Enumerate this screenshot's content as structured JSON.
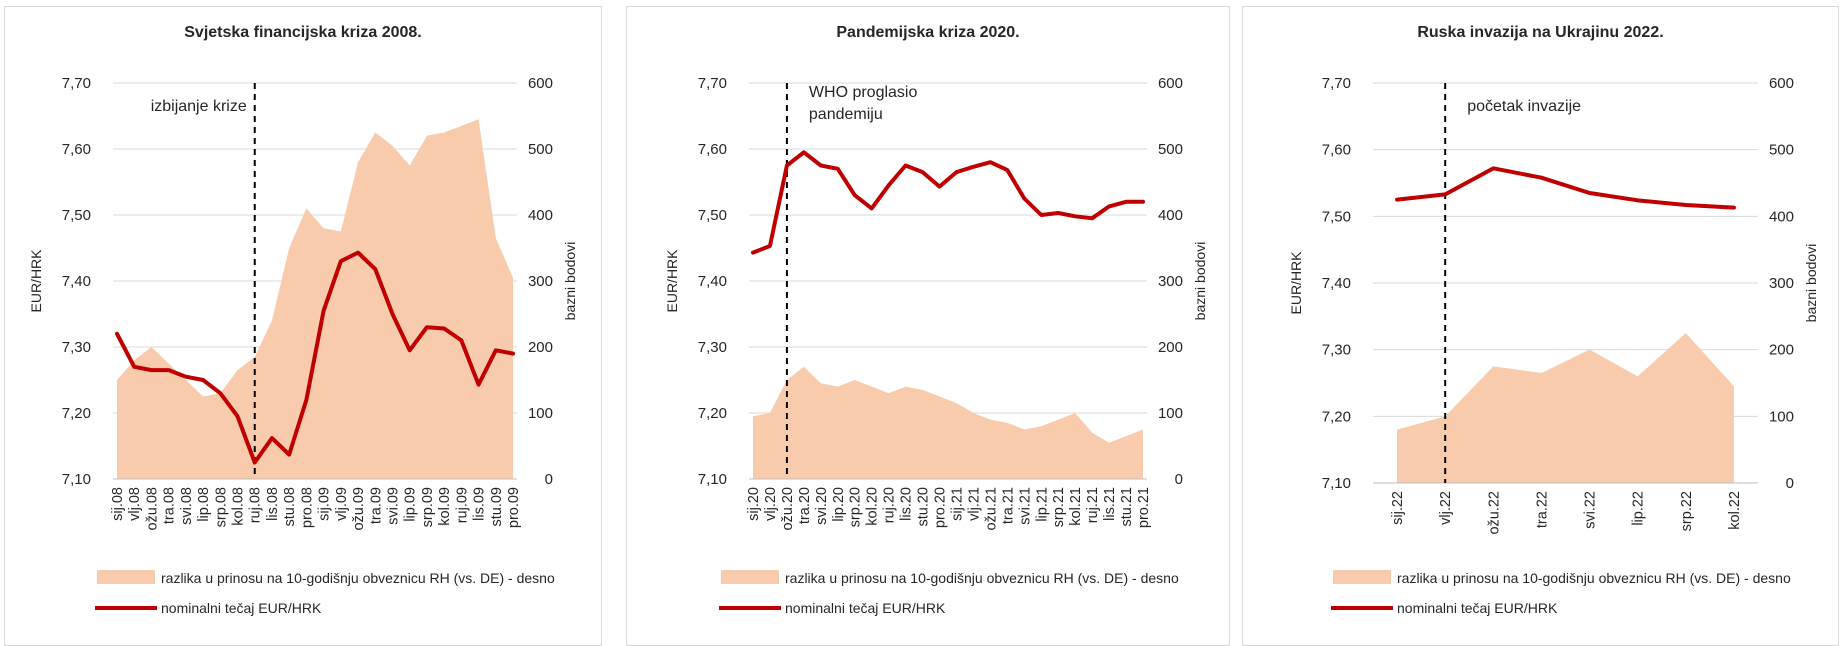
{
  "colors": {
    "area": "#F8CBAD",
    "line": "#C00000",
    "axis": "#bfbfbf",
    "grid": "#d9d9d9",
    "text": "#262626"
  },
  "legend": {
    "area_label": "razlika u prinosu na 10-godišnju obveznicu RH (vs. DE) - desno",
    "line_label": "nominalni tečaj EUR/HRK"
  },
  "chart_data": [
    {
      "type": "line",
      "title": "Svjetska financijska kriza 2008.",
      "ylabel": "EUR/HRK",
      "y2label": "bazni bodovi",
      "ylim": [
        7.1,
        7.7
      ],
      "y2lim": [
        0,
        600
      ],
      "yticks": [
        "7,10",
        "7,20",
        "7,30",
        "7,40",
        "7,50",
        "7,60",
        "7,70"
      ],
      "y2ticks": [
        "0",
        "100",
        "200",
        "300",
        "400",
        "500",
        "600"
      ],
      "grid": true,
      "categories": [
        "sij.08",
        "vlj.08",
        "ožu.08",
        "tra.08",
        "svi.08",
        "lip.08",
        "srp.08",
        "kol.08",
        "ruj.08",
        "lis.08",
        "stu.08",
        "pro.08",
        "sij.09",
        "vlj.09",
        "ožu.09",
        "tra.09",
        "svi.09",
        "lip.09",
        "srp.09",
        "kol.09",
        "ruj.09",
        "lis.09",
        "stu.09",
        "pro.09"
      ],
      "event": {
        "label": [
          "izbijanje  krize"
        ],
        "position": 8
      },
      "series": [
        {
          "name": "razlika u prinosu na 10-godišnju obveznicu RH (vs. DE) - desno",
          "axis": "right",
          "type": "area",
          "values": [
            150,
            180,
            200,
            175,
            150,
            125,
            130,
            165,
            185,
            240,
            350,
            410,
            380,
            375,
            480,
            525,
            505,
            475,
            520,
            525,
            535,
            545,
            365,
            305
          ]
        },
        {
          "name": "nominalni tečaj EUR/HRK",
          "axis": "left",
          "type": "line",
          "values": [
            7.32,
            7.27,
            7.265,
            7.265,
            7.255,
            7.25,
            7.23,
            7.195,
            7.125,
            7.162,
            7.137,
            7.22,
            7.355,
            7.43,
            7.443,
            7.418,
            7.35,
            7.295,
            7.33,
            7.328,
            7.31,
            7.243,
            7.295,
            7.29
          ]
        }
      ]
    },
    {
      "type": "line",
      "title": "Pandemijska kriza 2020.",
      "ylabel": "EUR/HRK",
      "y2label": "bazni bodovi",
      "ylim": [
        7.1,
        7.7
      ],
      "y2lim": [
        0,
        600
      ],
      "yticks": [
        "7,10",
        "7,20",
        "7,30",
        "7,40",
        "7,50",
        "7,60",
        "7,70"
      ],
      "y2ticks": [
        "0",
        "100",
        "200",
        "300",
        "400",
        "500",
        "600"
      ],
      "grid": true,
      "categories": [
        "sij.20",
        "vlj.20",
        "ožu.20",
        "tra.20",
        "svi.20",
        "lip.20",
        "srp.20",
        "kol.20",
        "ruj.20",
        "lis.20",
        "stu.20",
        "pro.20",
        "sij.21",
        "vlj.21",
        "ožu.21",
        "tra.21",
        "svi.21",
        "lip.21",
        "srp.21",
        "kol.21",
        "ruj.21",
        "lis.21",
        "stu.21",
        "pro.21"
      ],
      "event": {
        "label": [
          "WHO proglasio",
          "pandemiju"
        ],
        "position": 2
      },
      "series": [
        {
          "name": "razlika u prinosu na 10-godišnju obveznicu RH (vs. DE) - desno",
          "axis": "right",
          "type": "area",
          "values": [
            95,
            100,
            150,
            170,
            145,
            140,
            150,
            140,
            130,
            140,
            135,
            125,
            115,
            100,
            90,
            85,
            75,
            80,
            90,
            100,
            70,
            55,
            65,
            75
          ]
        },
        {
          "name": "nominalni tečaj EUR/HRK",
          "axis": "left",
          "type": "line",
          "values": [
            7.443,
            7.453,
            7.575,
            7.595,
            7.575,
            7.57,
            7.53,
            7.51,
            7.545,
            7.575,
            7.565,
            7.543,
            7.565,
            7.573,
            7.58,
            7.568,
            7.525,
            7.5,
            7.503,
            7.498,
            7.495,
            7.513,
            7.52,
            7.52
          ]
        }
      ]
    },
    {
      "type": "line",
      "title": "Ruska invazija na Ukrajinu 2022.",
      "ylabel": "EUR/HRK",
      "y2label": "bazni bodovi",
      "ylim": [
        7.1,
        7.7
      ],
      "y2lim": [
        0,
        600
      ],
      "yticks": [
        "7,10",
        "7,20",
        "7,30",
        "7,40",
        "7,50",
        "7,60",
        "7,70"
      ],
      "y2ticks": [
        "0",
        "100",
        "200",
        "300",
        "400",
        "500",
        "600"
      ],
      "grid": true,
      "categories": [
        "sij.22",
        "vlj.22",
        "ožu.22",
        "tra.22",
        "svi.22",
        "lip.22",
        "srp.22",
        "kol.22"
      ],
      "event": {
        "label": [
          "početak invazije"
        ],
        "position": 1
      },
      "series": [
        {
          "name": "razlika u prinosu na 10-godišnju obveznicu RH (vs. DE) - desno",
          "axis": "right",
          "type": "area",
          "values": [
            80,
            100,
            175,
            165,
            200,
            160,
            225,
            145
          ]
        },
        {
          "name": "nominalni tečaj EUR/HRK",
          "axis": "left",
          "type": "line",
          "values": [
            7.525,
            7.533,
            7.572,
            7.558,
            7.535,
            7.524,
            7.517,
            7.513
          ]
        }
      ]
    }
  ]
}
